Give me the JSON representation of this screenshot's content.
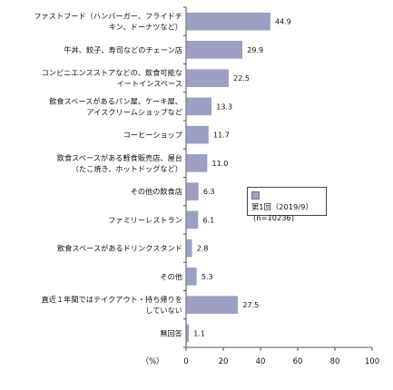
{
  "chart_data": {
    "type": "bar",
    "orientation": "horizontal",
    "categories": [
      [
        "ファストフード（ハンバーガー、フライドチ",
        "キン、ドーナツなど）"
      ],
      [
        "牛丼、餃子、寿司などのチェーン店"
      ],
      [
        "コンビニエンスストアなどの、飲食可能な",
        "イートインスペース"
      ],
      [
        "飲食スペースがあるパン屋、ケーキ屋、",
        "アイスクリームショップなど"
      ],
      [
        "コーヒーショップ"
      ],
      [
        "飲食スペースがある軽食販売店、屋台",
        "（たこ焼き、ホットドッグなど）"
      ],
      [
        "その他の飲食店"
      ],
      [
        "ファミリーレストラン"
      ],
      [
        "飲食スペースがあるドリンクスタンド"
      ],
      [
        "その他"
      ],
      [
        "直近１年間ではテイクアウト・持ち帰りを",
        "していない"
      ],
      [
        "無回答"
      ]
    ],
    "series": [
      {
        "name": "第1回（2019/9）",
        "values": [
          44.9,
          29.9,
          22.5,
          13.3,
          11.7,
          11.0,
          6.3,
          6.1,
          2.8,
          5.3,
          27.5,
          1.1
        ],
        "value_labels": [
          "44.9",
          "29.9",
          "22.5",
          "13.3",
          "11.7",
          "11.0",
          "6.3",
          "6.1",
          "2.8",
          "5.3",
          "27.5",
          "1.1"
        ]
      }
    ],
    "xlim": [
      0,
      100
    ],
    "xticks": [
      "0",
      "20",
      "40",
      "60",
      "80",
      "100"
    ],
    "xlabel": "（%）",
    "legend": {
      "entries": [
        "第1回（2019/9）"
      ],
      "note": "(n=10236)",
      "placement": "right"
    },
    "bar_color": "#9ca0c3",
    "grid": false
  }
}
